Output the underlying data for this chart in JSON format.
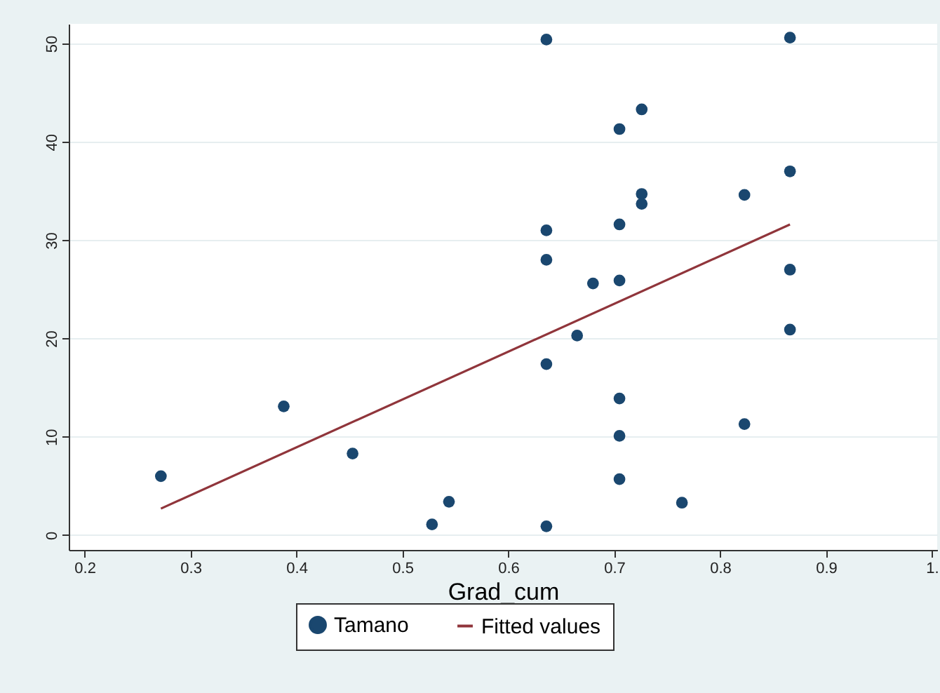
{
  "chart_data": {
    "type": "scatter",
    "xlabel": "Grad_cum",
    "xlim": [
      0.185,
      1.005
    ],
    "xticks": [
      0.2,
      0.3,
      0.4,
      0.5,
      0.6,
      0.7,
      0.8,
      0.9,
      {
        "value": 1.0,
        "label": "1."
      }
    ],
    "ylim": [
      -1.5,
      52
    ],
    "yticks": [
      0,
      10,
      20,
      30,
      40,
      50
    ],
    "grid": "y",
    "legend": "bottom",
    "series": [
      {
        "name": "Tamano",
        "marker": "circle",
        "color": "#1a476f",
        "x": [
          0.272,
          0.388,
          0.453,
          0.528,
          0.544,
          0.636,
          0.636,
          0.636,
          0.636,
          0.636,
          0.665,
          0.68,
          0.705,
          0.705,
          0.705,
          0.705,
          0.705,
          0.705,
          0.726,
          0.726,
          0.726,
          0.764,
          0.823,
          0.823,
          0.866,
          0.866,
          0.866,
          0.866
        ],
        "values": [
          6.0,
          13.1,
          8.3,
          1.1,
          3.4,
          50.4,
          31.0,
          28.0,
          17.4,
          0.9,
          20.3,
          25.6,
          41.3,
          31.6,
          25.9,
          13.9,
          10.1,
          5.7,
          43.3,
          34.7,
          33.7,
          3.3,
          34.6,
          11.3,
          50.6,
          37.0,
          27.0,
          20.9
        ]
      },
      {
        "name": "Fitted values",
        "type": "line",
        "color": "#90353b",
        "x": [
          0.272,
          0.866
        ],
        "values": [
          2.7,
          31.6
        ]
      }
    ]
  }
}
